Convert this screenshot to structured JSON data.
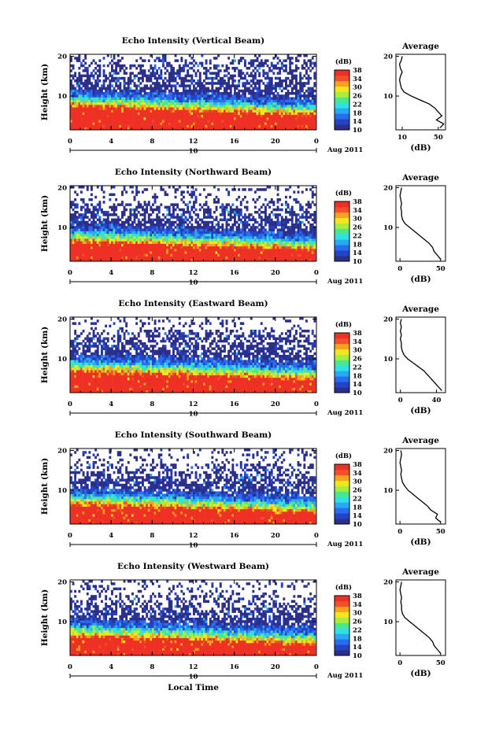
{
  "chart_data": [
    {
      "type": "heatmap",
      "title": "Echo Intensity (Vertical Beam)",
      "ylabel": "Height (km)",
      "x_ticks": [
        "0",
        "4",
        "8",
        "12",
        "16",
        "20",
        "0"
      ],
      "x_range": [
        0,
        24
      ],
      "y_range": [
        1.5,
        20.5
      ],
      "y_ticks": [
        "10",
        "20"
      ],
      "date_marker": "10",
      "date_label": "Aug 2011",
      "colorbar": {
        "label": "(dB)",
        "ticks": [
          "10",
          "14",
          "18",
          "22",
          "26",
          "30",
          "34",
          "38"
        ],
        "range": [
          10,
          38
        ]
      },
      "zones": {
        "red_top": 7.5,
        "cyan_top": 10.5,
        "slope": -0.1,
        "sparse_top": 19.5
      },
      "profile": {
        "title": "Average",
        "xlabel": "(dB)",
        "x_ticks": [
          "10",
          "50"
        ],
        "x_tick_values": [
          10,
          50
        ],
        "x_range": [
          3,
          58
        ],
        "y_ticks": [
          "10",
          "20"
        ],
        "heights": [
          2,
          3,
          4,
          5,
          6,
          7,
          8,
          9,
          10,
          11,
          12,
          13,
          14,
          15,
          16,
          17,
          18,
          19,
          20
        ],
        "values": [
          52,
          56,
          48,
          54,
          50,
          46,
          40,
          30,
          20,
          12,
          9,
          8,
          7,
          8,
          10,
          8,
          7,
          9,
          10
        ]
      }
    },
    {
      "type": "heatmap",
      "title": "Echo Intensity (Northward Beam)",
      "ylabel": "Height (km)",
      "x_ticks": [
        "0",
        "4",
        "8",
        "12",
        "16",
        "20",
        "0"
      ],
      "x_range": [
        0,
        24
      ],
      "y_range": [
        1.5,
        20.5
      ],
      "y_ticks": [
        "10",
        "20"
      ],
      "date_marker": "10",
      "date_label": "Aug 2011",
      "colorbar": {
        "label": "(dB)",
        "ticks": [
          "10",
          "14",
          "18",
          "22",
          "26",
          "30",
          "34",
          "38"
        ],
        "range": [
          10,
          38
        ]
      },
      "zones": {
        "red_top": 6.5,
        "cyan_top": 9.5,
        "slope": -0.09,
        "sparse_top": 16.5
      },
      "profile": {
        "title": "Average",
        "xlabel": "(dB)",
        "x_ticks": [
          "0",
          "50"
        ],
        "x_tick_values": [
          0,
          50
        ],
        "x_range": [
          -5,
          56
        ],
        "y_ticks": [
          "10",
          "20"
        ],
        "heights": [
          2,
          3,
          4,
          5,
          6,
          7,
          8,
          9,
          10,
          11,
          12,
          13,
          14,
          15,
          16,
          17,
          18,
          19,
          20
        ],
        "values": [
          50,
          46,
          42,
          40,
          36,
          30,
          24,
          18,
          12,
          6,
          3,
          2,
          2,
          1,
          2,
          1,
          0,
          1,
          2
        ]
      }
    },
    {
      "type": "heatmap",
      "title": "Echo Intensity (Eastward Beam)",
      "ylabel": "Height (km)",
      "x_ticks": [
        "0",
        "4",
        "8",
        "12",
        "16",
        "20",
        "0"
      ],
      "x_range": [
        0,
        24
      ],
      "y_range": [
        1.5,
        20.5
      ],
      "y_ticks": [
        "10",
        "20"
      ],
      "date_marker": "10",
      "date_label": "Aug 2011",
      "colorbar": {
        "label": "(dB)",
        "ticks": [
          "10",
          "14",
          "18",
          "22",
          "26",
          "30",
          "34",
          "38"
        ],
        "range": [
          10,
          38
        ]
      },
      "zones": {
        "red_top": 7.0,
        "cyan_top": 10.0,
        "slope": -0.09,
        "sparse_top": 17.5
      },
      "profile": {
        "title": "Average",
        "xlabel": "(dB)",
        "x_ticks": [
          "0",
          "40"
        ],
        "x_tick_values": [
          0,
          40
        ],
        "x_range": [
          -5,
          50
        ],
        "y_ticks": [
          "10",
          "20"
        ],
        "heights": [
          2,
          3,
          4,
          5,
          6,
          7,
          8,
          9,
          10,
          11,
          12,
          13,
          14,
          15,
          16,
          17,
          18,
          19,
          20
        ],
        "values": [
          46,
          42,
          38,
          34,
          30,
          26,
          20,
          14,
          8,
          4,
          2,
          1,
          1,
          0,
          1,
          0,
          1,
          0,
          1
        ]
      }
    },
    {
      "type": "heatmap",
      "title": "Echo Intensity (Southward Beam)",
      "ylabel": "Height (km)",
      "x_ticks": [
        "0",
        "4",
        "8",
        "12",
        "16",
        "20",
        "0"
      ],
      "x_range": [
        0,
        24
      ],
      "y_range": [
        1.5,
        20.5
      ],
      "y_ticks": [
        "10",
        "20"
      ],
      "date_marker": "10",
      "date_label": "Aug 2011",
      "colorbar": {
        "label": "(dB)",
        "ticks": [
          "10",
          "14",
          "18",
          "22",
          "26",
          "30",
          "34",
          "38"
        ],
        "range": [
          10,
          38
        ]
      },
      "zones": {
        "red_top": 6.5,
        "cyan_top": 9.5,
        "slope": -0.09,
        "sparse_top": 16.5
      },
      "profile": {
        "title": "Average",
        "xlabel": "(dB)",
        "x_ticks": [
          "0",
          "50"
        ],
        "x_tick_values": [
          0,
          50
        ],
        "x_range": [
          -5,
          56
        ],
        "y_ticks": [
          "10",
          "20"
        ],
        "heights": [
          2,
          3,
          4,
          5,
          6,
          7,
          8,
          9,
          10,
          11,
          12,
          13,
          14,
          15,
          16,
          17,
          18,
          19,
          20
        ],
        "values": [
          50,
          44,
          46,
          38,
          34,
          28,
          22,
          16,
          10,
          6,
          3,
          2,
          1,
          2,
          1,
          0,
          1,
          2,
          1
        ]
      }
    },
    {
      "type": "heatmap",
      "title": "Echo Intensity (Westward Beam)",
      "ylabel": "Height (km)",
      "x_ticks": [
        "0",
        "4",
        "8",
        "12",
        "16",
        "20",
        "0"
      ],
      "x_range": [
        0,
        24
      ],
      "y_range": [
        1.5,
        20.5
      ],
      "y_ticks": [
        "10",
        "20"
      ],
      "date_marker": "10",
      "date_label": "Aug 2011",
      "xlabel": "Local Time",
      "colorbar": {
        "label": "(dB)",
        "ticks": [
          "10",
          "14",
          "18",
          "22",
          "26",
          "30",
          "34",
          "38"
        ],
        "range": [
          10,
          38
        ]
      },
      "zones": {
        "red_top": 6.5,
        "cyan_top": 9.5,
        "slope": -0.09,
        "sparse_top": 16.5
      },
      "profile": {
        "title": "Average",
        "xlabel": "(dB)",
        "x_ticks": [
          "0",
          "50"
        ],
        "x_tick_values": [
          0,
          50
        ],
        "x_range": [
          -5,
          56
        ],
        "y_ticks": [
          "10",
          "20"
        ],
        "heights": [
          2,
          3,
          4,
          5,
          6,
          7,
          8,
          9,
          10,
          11,
          12,
          13,
          14,
          15,
          16,
          17,
          18,
          19,
          20
        ],
        "values": [
          50,
          46,
          42,
          40,
          36,
          30,
          24,
          18,
          12,
          6,
          3,
          2,
          2,
          1,
          2,
          1,
          0,
          1,
          2
        ]
      }
    }
  ]
}
